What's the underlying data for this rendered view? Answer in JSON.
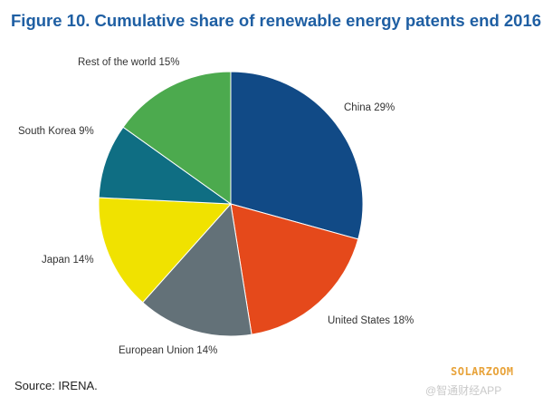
{
  "title": "Figure 10. Cumulative share of renewable energy patents end 2016",
  "source": "Source: IRENA.",
  "watermark": {
    "brand": "SOLARZOOM",
    "app": "@智通财经APP"
  },
  "chart_data": {
    "type": "pie",
    "title": "Figure 10. Cumulative share of renewable energy patents end 2016",
    "unit": "%",
    "legend": "none",
    "slices": [
      {
        "label": "China",
        "value": 29,
        "color": "#114a86"
      },
      {
        "label": "United States",
        "value": 18,
        "color": "#e5491b"
      },
      {
        "label": "European Union",
        "value": 14,
        "color": "#637178"
      },
      {
        "label": "Japan",
        "value": 14,
        "color": "#f0e200"
      },
      {
        "label": "South Korea",
        "value": 9,
        "color": "#0f6e83"
      },
      {
        "label": "Rest of the world",
        "value": 15,
        "color": "#4caa4e"
      }
    ],
    "slice_labels": [
      "China 29%",
      "United States 18%",
      "European Union 14%",
      "Japan 14%",
      "South Korea 9%",
      "Rest of the world 15%"
    ]
  }
}
